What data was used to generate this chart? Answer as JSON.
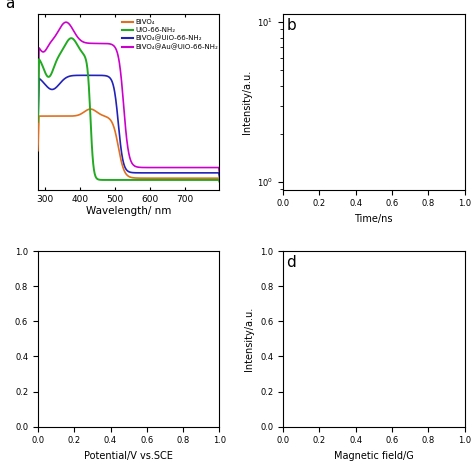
{
  "xlabel_a": "Wavelength/ nm",
  "xticks_a": [
    300,
    400,
    500,
    600,
    700
  ],
  "xlim_a": [
    280,
    800
  ],
  "colors": {
    "BiVO4": "#E07020",
    "UiO-66-NH2": "#22AA22",
    "BiVO4@UiO-66-NH2": "#2222BB",
    "BiVO4@Au@UiO-66-NH2": "#CC00CC"
  },
  "legend_labels": [
    "BiVO₄",
    "UiO-66-NH₂",
    "BiVO₄@UiO-66-NH₂",
    "BiVO₄@Au@UiO-66-NH₂"
  ],
  "panel_label_a": "a",
  "background_color": "#ffffff"
}
